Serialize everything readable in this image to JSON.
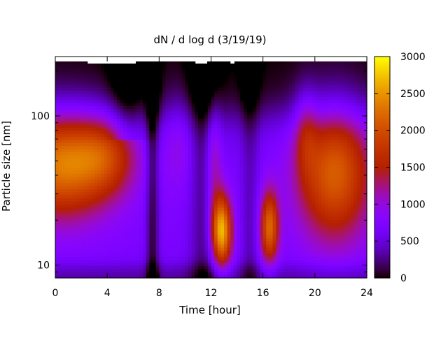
{
  "chart_data": {
    "type": "heatmap",
    "title": "dN / d log d (3/19/19)",
    "xlabel": "Time [hour]",
    "ylabel": "Particle size [nm]",
    "xlim": [
      0,
      24
    ],
    "ylim": [
      8.2,
      250
    ],
    "yscale": "log",
    "x_ticks": [
      0,
      4,
      8,
      12,
      16,
      20,
      24
    ],
    "y_ticks": [
      10,
      100
    ],
    "colorbar": {
      "range": [
        0,
        3000
      ],
      "ticks": [
        0,
        500,
        1000,
        1500,
        2000,
        2500,
        3000
      ],
      "colormap": "gnuplot"
    },
    "z_units": "dN/dlogd",
    "background_level": 700,
    "features": [
      {
        "t": 0.5,
        "d": 48,
        "peak": 1650,
        "t_width": 2.8,
        "d_width_dec": 0.25
      },
      {
        "t": 4.0,
        "d": 55,
        "peak": 700,
        "t_width": 1.6,
        "d_width_dec": 0.18
      },
      {
        "t": 12.8,
        "d": 17,
        "peak": 2050,
        "t_width": 0.55,
        "d_width_dec": 0.17
      },
      {
        "t": 12.2,
        "d": 50,
        "peak": 650,
        "t_width": 0.45,
        "d_width_dec": 0.3
      },
      {
        "t": 16.5,
        "d": 18,
        "peak": 1500,
        "t_width": 0.5,
        "d_width_dec": 0.17
      },
      {
        "t": 21.5,
        "d": 42,
        "peak": 1450,
        "t_width": 2.0,
        "d_width_dec": 0.32
      },
      {
        "t": 19.3,
        "d": 80,
        "peak": 500,
        "t_width": 0.6,
        "d_width_dec": 0.2
      },
      {
        "t": 9.5,
        "d": 70,
        "peak": 300,
        "t_width": 0.8,
        "d_width_dec": 0.25
      }
    ],
    "low_bands": [
      {
        "t": 5.5,
        "width": 0.9,
        "d_min": 70,
        "depth": 350
      },
      {
        "t": 7.5,
        "width": 0.35,
        "d_min": 8.2,
        "depth": 600
      },
      {
        "t": 11.5,
        "width": 0.8,
        "d_min": 8.2,
        "depth": 450
      },
      {
        "t": 15.0,
        "width": 0.5,
        "d_min": 8.2,
        "depth": 300
      }
    ]
  }
}
